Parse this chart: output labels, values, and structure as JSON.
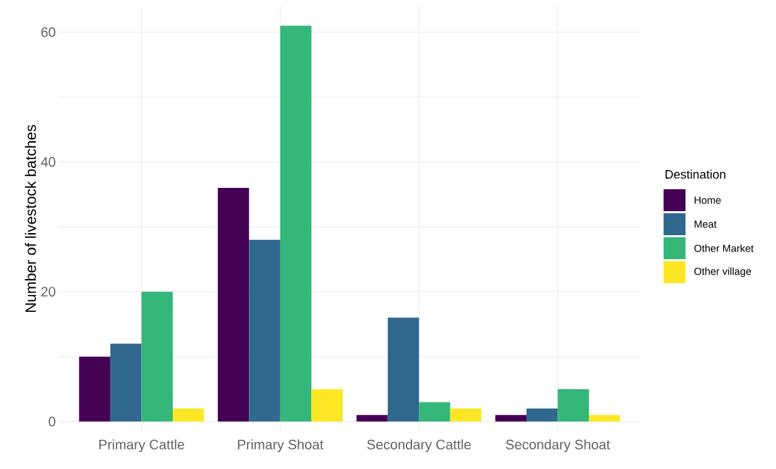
{
  "chart_data": {
    "type": "bar",
    "ylabel": "Number of livestock batches",
    "legend_title": "Destination",
    "categories": [
      "Primary Cattle",
      "Primary Shoat",
      "Secondary Cattle",
      "Secondary Shoat"
    ],
    "series": [
      {
        "name": "Home",
        "color": "#440154",
        "values": [
          10,
          36,
          1,
          1
        ]
      },
      {
        "name": "Meat",
        "color": "#31688e",
        "values": [
          12,
          28,
          16,
          2
        ]
      },
      {
        "name": "Other Market",
        "color": "#35b779",
        "values": [
          20,
          61,
          3,
          5
        ]
      },
      {
        "name": "Other village",
        "color": "#fde725",
        "values": [
          2,
          5,
          2,
          1
        ]
      }
    ],
    "ylim": [
      -1.5,
      64
    ],
    "yticks": [
      0,
      {
        "value": 10,
        "label": null
      },
      20,
      {
        "value": 30,
        "label": null
      },
      40,
      {
        "value": 50,
        "label": null
      },
      60
    ],
    "grid": true,
    "legend": "right"
  }
}
